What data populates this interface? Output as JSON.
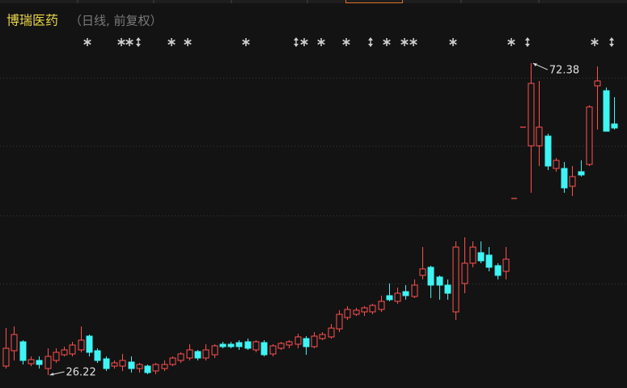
{
  "chart_data": {
    "type": "candlestick",
    "title": "博瑞医药",
    "subtitle": "（日线, 前复权）",
    "up_color": "#ff5050",
    "down_color": "#3ff4f4",
    "ylim": [
      24.3,
      76.94
    ],
    "annotations": [
      "72.38",
      "26.22"
    ],
    "open": [
      27.54,
      29.82,
      31.14,
      27.9,
      28.38,
      27.18,
      28.38,
      29.22,
      29.34,
      29.94,
      31.98,
      29.82,
      28.62,
      27.54,
      27.54,
      28.14,
      27.18,
      27.54,
      26.82,
      27.18,
      27.78,
      28.38,
      28.74,
      29.7,
      28.74,
      29.22,
      30.78,
      30.78,
      31.02,
      31.14,
      29.94,
      31.02,
      29.34,
      30.18,
      30.66,
      30.78,
      31.62,
      30.42,
      31.62,
      31.86,
      33.05,
      34.73,
      35.21,
      35.57,
      35.57,
      35.93,
      37.97,
      37.13,
      38.57,
      37.85,
      40.97,
      42.17,
      40.73,
      39.53,
      35.57,
      39.77,
      42.77,
      44.33,
      43.97,
      42.41,
      41.57,
      52.36,
      62.91,
      60.15,
      60.15,
      61.59,
      56.8,
      56.8,
      54.16,
      56.32,
      57.4,
      69.03,
      68.31,
      63.39
    ],
    "high": [
      33.17,
      33.41,
      31.38,
      28.98,
      28.98,
      30.18,
      30.18,
      30.42,
      31.14,
      33.41,
      32.22,
      30.18,
      28.98,
      28.38,
      29.34,
      28.98,
      28.02,
      27.78,
      28.02,
      28.38,
      28.98,
      29.58,
      30.78,
      29.94,
      30.78,
      30.78,
      31.14,
      31.14,
      31.38,
      31.62,
      31.38,
      31.38,
      30.78,
      31.14,
      31.38,
      32.34,
      31.98,
      32.57,
      32.57,
      33.77,
      35.81,
      36.41,
      36.17,
      36.41,
      36.77,
      37.97,
      39.77,
      39.17,
      39.53,
      40.37,
      45.16,
      42.41,
      40.97,
      40.37,
      46.0,
      46.6,
      46.0,
      46.0,
      45.16,
      42.77,
      45.16,
      52.36,
      62.91,
      72.38,
      69.75,
      61.95,
      58.35,
      57.75,
      57.16,
      57.99,
      66.15,
      71.9,
      68.79,
      67.35
    ],
    "low": [
      27.18,
      28.38,
      27.78,
      27.54,
      27.18,
      26.22,
      28.02,
      28.98,
      28.98,
      29.58,
      28.98,
      28.02,
      26.82,
      27.18,
      26.82,
      26.58,
      26.58,
      26.34,
      26.34,
      26.82,
      27.54,
      28.02,
      28.38,
      28.38,
      28.38,
      28.74,
      30.18,
      30.18,
      29.94,
      29.94,
      29.58,
      28.98,
      28.98,
      29.94,
      30.18,
      30.18,
      29.22,
      30.18,
      31.38,
      31.62,
      32.57,
      34.37,
      34.97,
      34.97,
      35.21,
      35.57,
      37.13,
      36.77,
      37.37,
      37.61,
      40.37,
      37.61,
      37.37,
      37.37,
      34.37,
      38.33,
      42.17,
      42.77,
      41.57,
      40.37,
      40.37,
      52.36,
      62.91,
      53.2,
      57.16,
      56.56,
      56.32,
      53.2,
      52.72,
      55.6,
      57.16,
      62.55,
      62.31,
      62.55
    ],
    "close": [
      30.18,
      32.22,
      28.38,
      28.5,
      27.78,
      28.98,
      29.58,
      29.94,
      30.66,
      31.38,
      29.58,
      28.38,
      27.18,
      28.02,
      28.38,
      27.18,
      27.78,
      26.58,
      27.78,
      27.78,
      28.74,
      29.34,
      29.94,
      28.74,
      29.94,
      30.54,
      30.42,
      30.42,
      30.42,
      30.18,
      31.14,
      29.22,
      30.54,
      30.9,
      31.14,
      31.86,
      30.42,
      31.98,
      32.22,
      33.17,
      35.21,
      35.93,
      35.81,
      36.17,
      36.53,
      37.13,
      37.37,
      38.33,
      37.97,
      39.53,
      41.93,
      39.53,
      39.53,
      38.33,
      45.16,
      42.77,
      45.16,
      43.13,
      42.17,
      40.97,
      43.37,
      52.36,
      62.91,
      69.39,
      62.91,
      57.16,
      57.99,
      53.92,
      55.6,
      55.84,
      65.91,
      69.75,
      62.31,
      62.79
    ]
  }
}
